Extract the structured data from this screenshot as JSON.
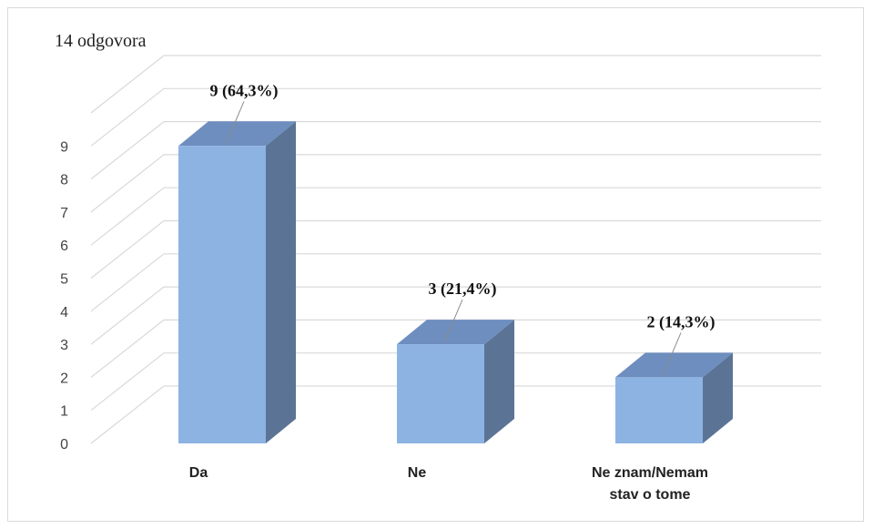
{
  "chart_data": {
    "type": "bar",
    "subtitle": "14 odgovora",
    "categories": [
      [
        "Da"
      ],
      [
        "Ne"
      ],
      [
        "Ne znam/Nemam",
        "stav o tome"
      ]
    ],
    "values": [
      9,
      3,
      2
    ],
    "data_labels": [
      "9 (64,3%)",
      "3 (21,4%)",
      "2 (14,3%)"
    ],
    "ylim": [
      0,
      9
    ],
    "yticks": [
      "0",
      "1",
      "2",
      "3",
      "4",
      "5",
      "6",
      "7",
      "8",
      "9"
    ],
    "grid": true,
    "colors": {
      "front": "#8db3e2",
      "top": "#6d8ebf",
      "side": "#5b7496",
      "grid": "#d9d9d9"
    }
  }
}
